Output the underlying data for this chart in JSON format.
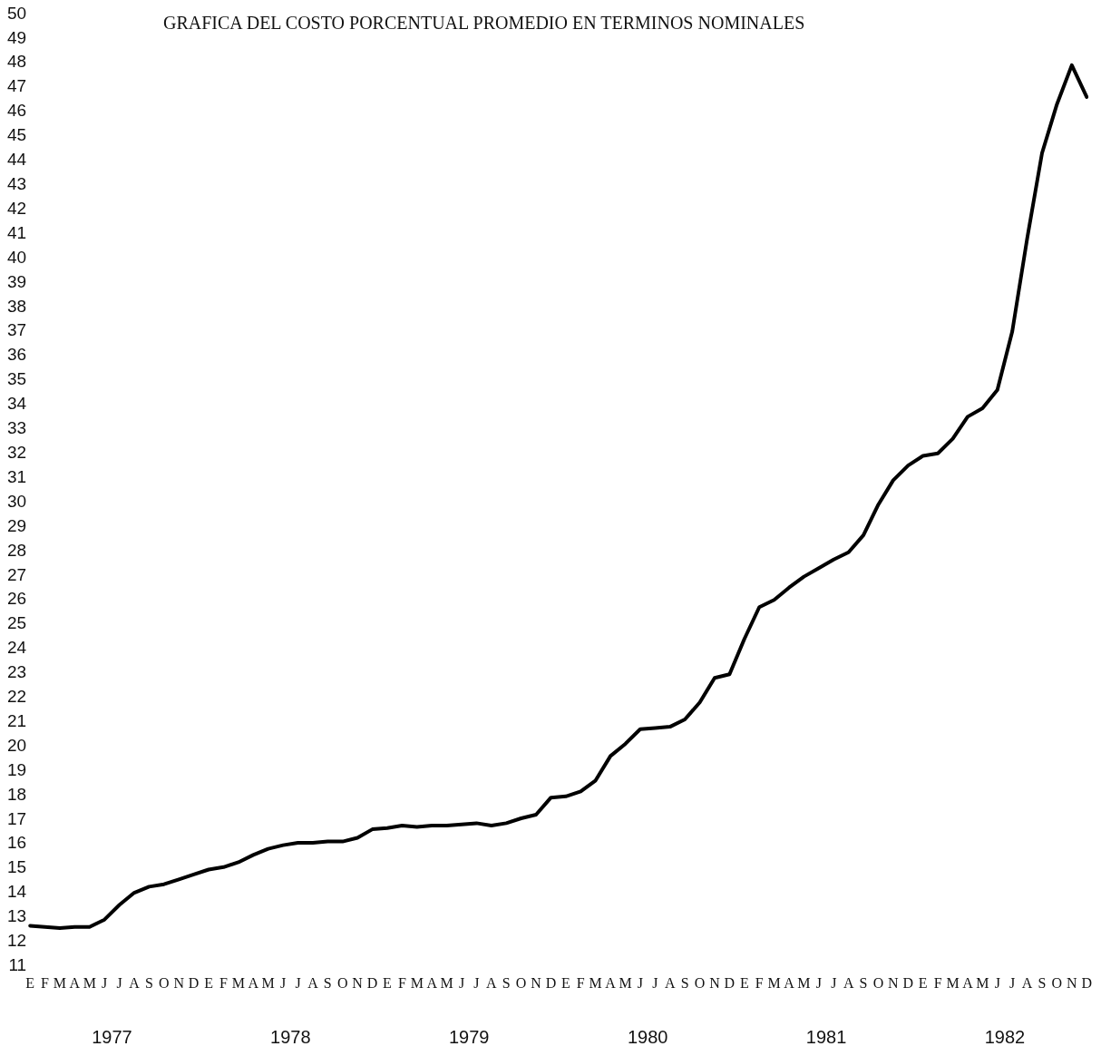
{
  "chart_data": {
    "type": "line",
    "title": "GRAFICA DEL COSTO PORCENTUAL PROMEDIO EN TERMINOS NOMINALES",
    "categories": [
      "E",
      "F",
      "M",
      "A",
      "M",
      "J",
      "J",
      "A",
      "S",
      "O",
      "N",
      "D",
      "E",
      "F",
      "M",
      "A",
      "M",
      "J",
      "J",
      "A",
      "S",
      "O",
      "N",
      "D",
      "E",
      "F",
      "M",
      "A",
      "M",
      "J",
      "J",
      "A",
      "S",
      "O",
      "N",
      "D",
      "E",
      "F",
      "M",
      "A",
      "M",
      "J",
      "J",
      "A",
      "S",
      "O",
      "N",
      "D",
      "E",
      "F",
      "M",
      "A",
      "M",
      "J",
      "J",
      "A",
      "S",
      "O",
      "N",
      "D",
      "E",
      "F",
      "M",
      "A",
      "M",
      "J",
      "J",
      "A",
      "S",
      "O",
      "N",
      "D"
    ],
    "series": [
      {
        "color": "#000000",
        "values": [
          12.65,
          12.6,
          12.55,
          12.6,
          12.6,
          12.9,
          13.5,
          14.0,
          14.25,
          14.35,
          14.55,
          14.75,
          14.95,
          15.05,
          15.25,
          15.55,
          15.8,
          15.95,
          16.05,
          16.05,
          16.1,
          16.1,
          16.25,
          16.6,
          16.65,
          16.75,
          16.7,
          16.75,
          16.75,
          16.8,
          16.85,
          16.75,
          16.85,
          17.05,
          17.2,
          17.9,
          17.95,
          18.15,
          18.6,
          19.6,
          20.1,
          20.7,
          20.75,
          20.8,
          21.1,
          21.8,
          22.8,
          22.95,
          24.4,
          25.7,
          26.0,
          26.5,
          26.95,
          27.3,
          27.65,
          27.95,
          28.65,
          29.9,
          30.9,
          31.5,
          31.9,
          32.0,
          32.6,
          33.5,
          33.85,
          34.6,
          37.0,
          40.8,
          44.3,
          46.3,
          47.9,
          46.6
        ]
      }
    ],
    "annotations": [
      "1977",
      "1978",
      "1979",
      "1980",
      "1981",
      "1982"
    ],
    "ylim": [
      11,
      50
    ],
    "yticks": [
      11,
      12,
      13,
      14,
      15,
      16,
      17,
      18,
      19,
      20,
      21,
      22,
      23,
      24,
      25,
      26,
      27,
      28,
      29,
      30,
      31,
      32,
      33,
      34,
      35,
      36,
      37,
      38,
      39,
      40,
      41,
      42,
      43,
      44,
      45,
      46,
      47,
      48,
      49,
      50
    ],
    "grid": false,
    "legend": false,
    "marker": "none",
    "line_style": "solid"
  }
}
